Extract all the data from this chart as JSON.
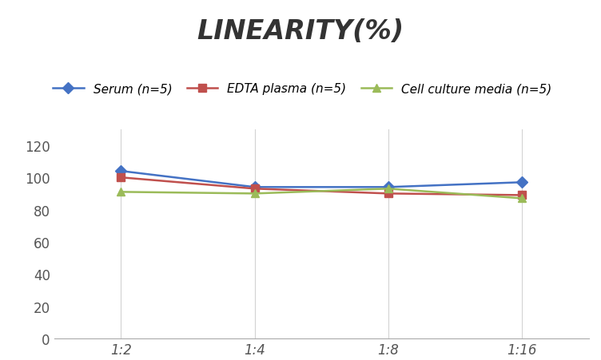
{
  "title": "LINEARITY(%)",
  "x_labels": [
    "1:2",
    "1:4",
    "1:8",
    "1:16"
  ],
  "x_positions": [
    0,
    1,
    2,
    3
  ],
  "series": [
    {
      "label": "Serum (n=5)",
      "values": [
        104,
        94,
        94,
        97
      ],
      "color": "#4472C4",
      "marker": "D",
      "marker_color": "#4472C4"
    },
    {
      "label": "EDTA plasma (n=5)",
      "values": [
        100,
        93,
        90,
        89
      ],
      "color": "#C0504D",
      "marker": "s",
      "marker_color": "#C0504D"
    },
    {
      "label": "Cell culture media (n=5)",
      "values": [
        91,
        90,
        93,
        87
      ],
      "color": "#9BBB59",
      "marker": "^",
      "marker_color": "#9BBB59"
    }
  ],
  "ylim": [
    0,
    130
  ],
  "yticks": [
    0,
    20,
    40,
    60,
    80,
    100,
    120
  ],
  "grid_color": "#D3D3D3",
  "background_color": "#FFFFFF",
  "title_fontsize": 24,
  "legend_fontsize": 11,
  "tick_fontsize": 12
}
